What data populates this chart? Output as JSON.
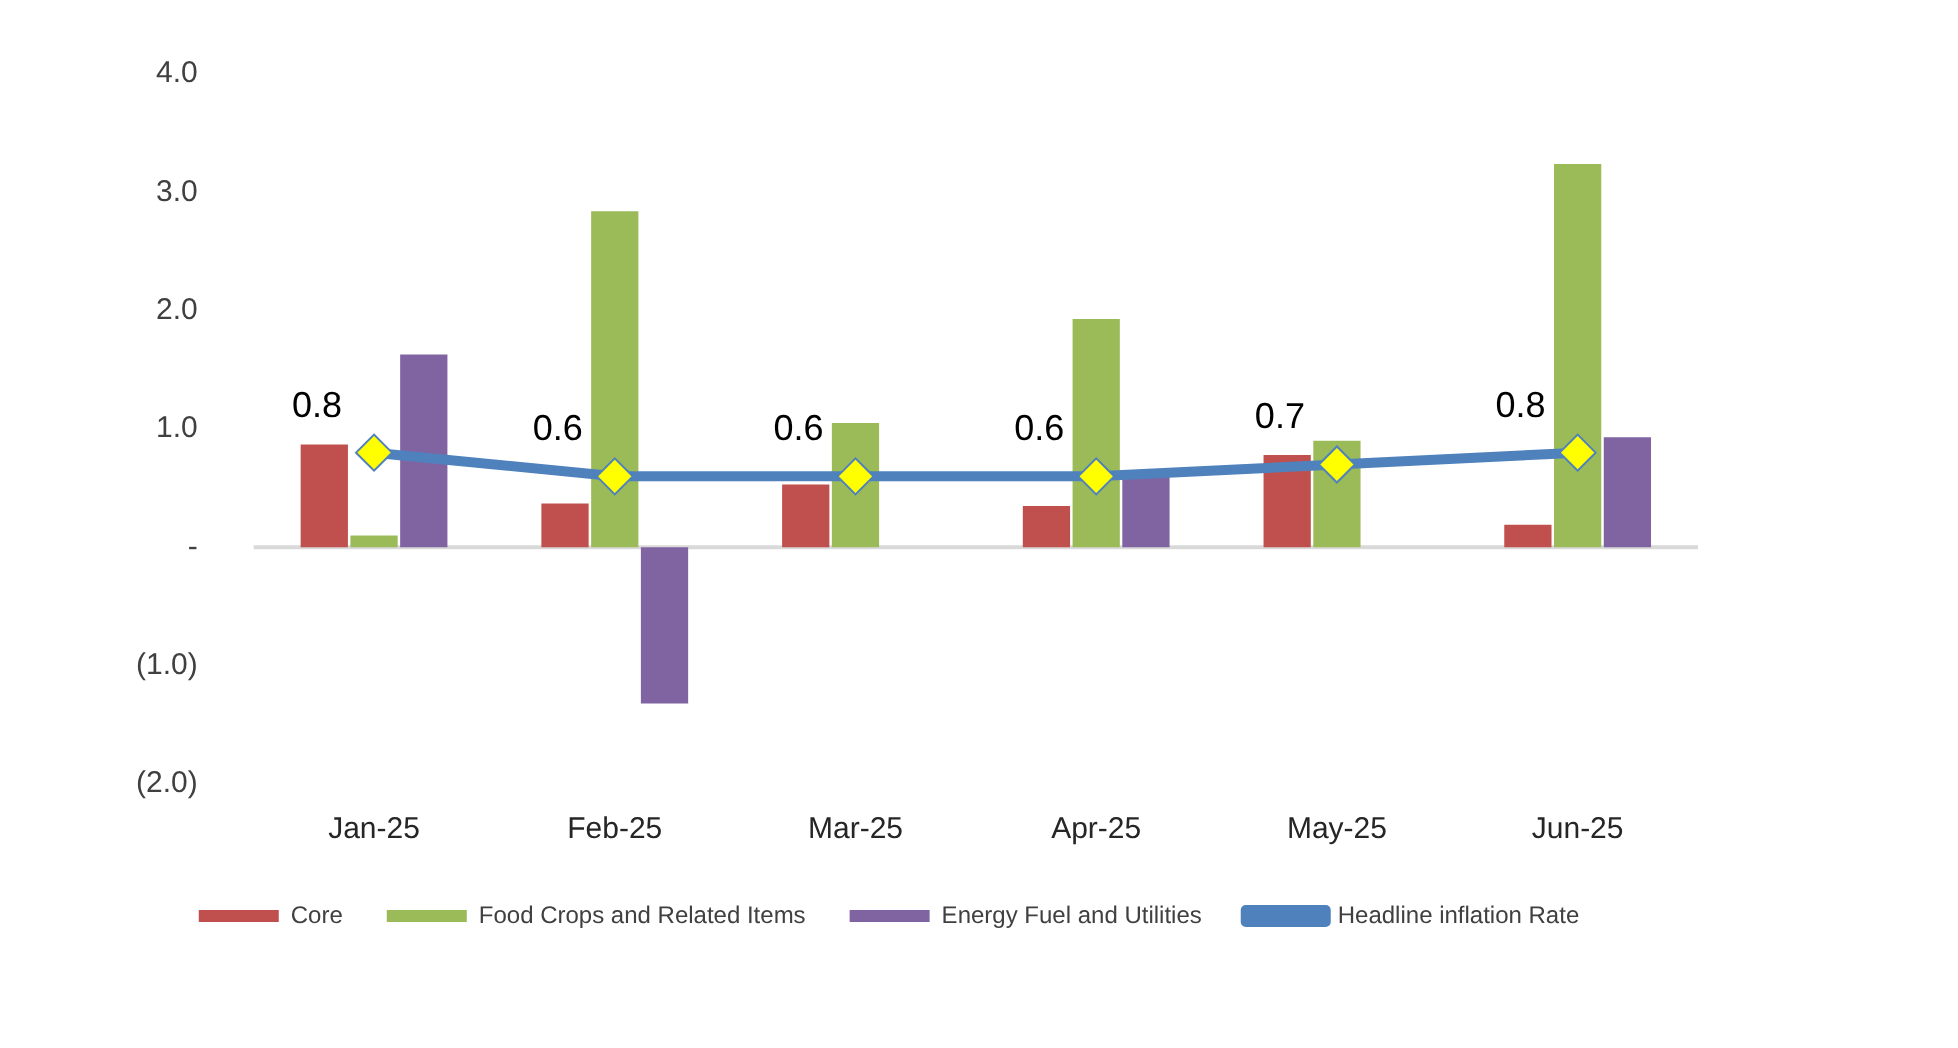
{
  "chart_data": {
    "type": "bar",
    "categories": [
      "Jan-25",
      "Feb-25",
      "Mar-25",
      "Apr-25",
      "May-25",
      "Jun-25"
    ],
    "series": [
      {
        "name": "Core",
        "color": "#c0504d",
        "values": [
          0.87,
          0.37,
          0.53,
          0.35,
          0.78,
          0.19
        ]
      },
      {
        "name": "Food Crops and Related Items",
        "color": "#9bbb59",
        "values": [
          0.1,
          2.84,
          1.05,
          1.93,
          0.9,
          3.24
        ]
      },
      {
        "name": "Energy Fuel and Utilities",
        "color": "#8064a2",
        "values": [
          1.63,
          -1.32,
          0,
          0.64,
          0,
          0.93
        ]
      },
      {
        "name": "Headline inflation Rate",
        "type": "line",
        "color": "#4f81bd",
        "colors": [
          "#ffff00",
          "#ffff00",
          "#ffff00",
          "#ffff00",
          "#ffff00",
          "#ffff00"
        ],
        "marker": "diamond",
        "values": [
          0.8,
          0.6,
          0.6,
          0.6,
          0.7,
          0.8
        ],
        "value_labels": [
          "0.8",
          "0.6",
          "0.6",
          "0.6",
          "0.7",
          "0.8"
        ]
      }
    ],
    "ylim": [
      -2,
      4
    ],
    "yticks": [
      {
        "value": 4,
        "label": "4.0"
      },
      {
        "value": 3,
        "label": "3.0"
      },
      {
        "value": 2,
        "label": "2.0"
      },
      {
        "value": 1,
        "label": "1.0"
      },
      {
        "value": 0,
        "label": "-"
      },
      {
        "value": -1,
        "label": "(1.0)"
      },
      {
        "value": -2,
        "label": "(2.0)"
      }
    ],
    "grid": false,
    "ref_lines": [
      {
        "axis": "y",
        "value": 0,
        "color": "#d9d9d9"
      }
    ],
    "legend": "bottom"
  }
}
